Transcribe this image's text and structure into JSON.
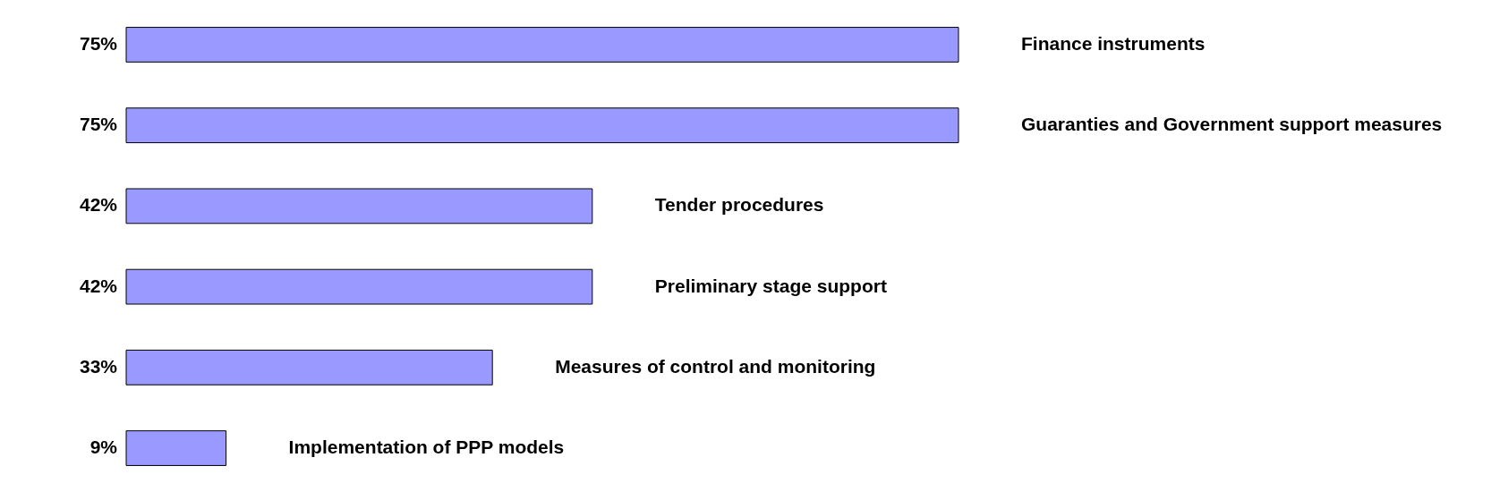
{
  "chart_data": {
    "type": "bar",
    "orientation": "horizontal",
    "categories": [
      "Finance instruments",
      "Guaranties and Government support measures",
      "Tender procedures",
      "Preliminary stage support",
      "Measures of control and monitoring",
      "Implementation of PPP models"
    ],
    "values": [
      75,
      75,
      42,
      42,
      33,
      9
    ],
    "value_labels": [
      "75%",
      "75%",
      "42%",
      "42%",
      "33%",
      "9%"
    ],
    "color": "#9999ff"
  }
}
